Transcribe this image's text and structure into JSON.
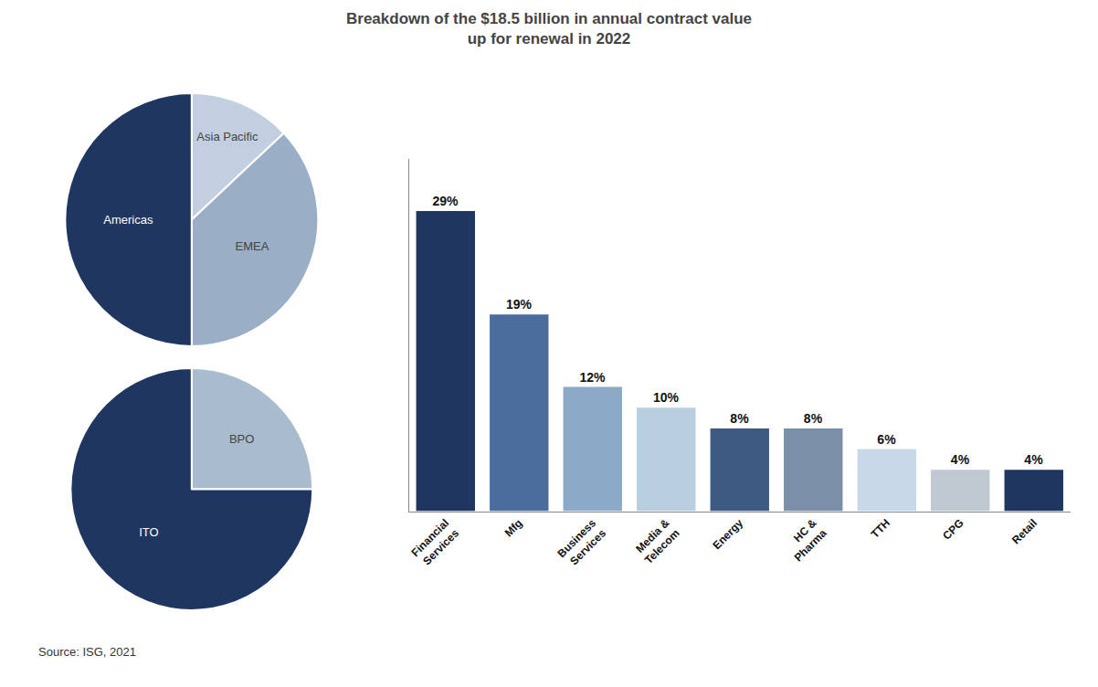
{
  "title": "Breakdown of the $18.5 billion in annual contract value\nup for renewal in 2022",
  "annotations": [
    "Source: ISG, 2021"
  ],
  "chart_data": [
    {
      "type": "pie",
      "categories": [
        "Asia Pacific",
        "EMEA",
        "Americas"
      ],
      "values": [
        13,
        37,
        50
      ],
      "colors": [
        "#c2cfe0",
        "#9aaec5",
        "#1e3660"
      ]
    },
    {
      "type": "pie",
      "categories": [
        "BPO",
        "ITO"
      ],
      "values": [
        25,
        75
      ],
      "colors": [
        "#a8bcce",
        "#1e3660"
      ]
    },
    {
      "type": "bar",
      "categories": [
        "Financial\nServices",
        "Mfg",
        "Business\nServices",
        "Media &\nTelecom",
        "Energy",
        "HC &\nPharma",
        "TTH",
        "CPG",
        "Retail"
      ],
      "values": [
        29,
        19,
        12,
        10,
        8,
        8,
        6,
        4,
        4
      ],
      "value_labels": [
        "29%",
        "19%",
        "12%",
        "10%",
        "8%",
        "8%",
        "6%",
        "4%",
        "4%"
      ],
      "colors": [
        "#1e3660",
        "#4a6d9e",
        "#8aaac8",
        "#b8cfe0",
        "#3d5a82",
        "#7a8fa8",
        "#c8d8e8",
        "#c0c8d2",
        "#1e3660"
      ],
      "data_labels": true,
      "ylim": [
        0,
        34
      ],
      "yticks": [],
      "tick_labels": "x",
      "grid": false
    }
  ]
}
